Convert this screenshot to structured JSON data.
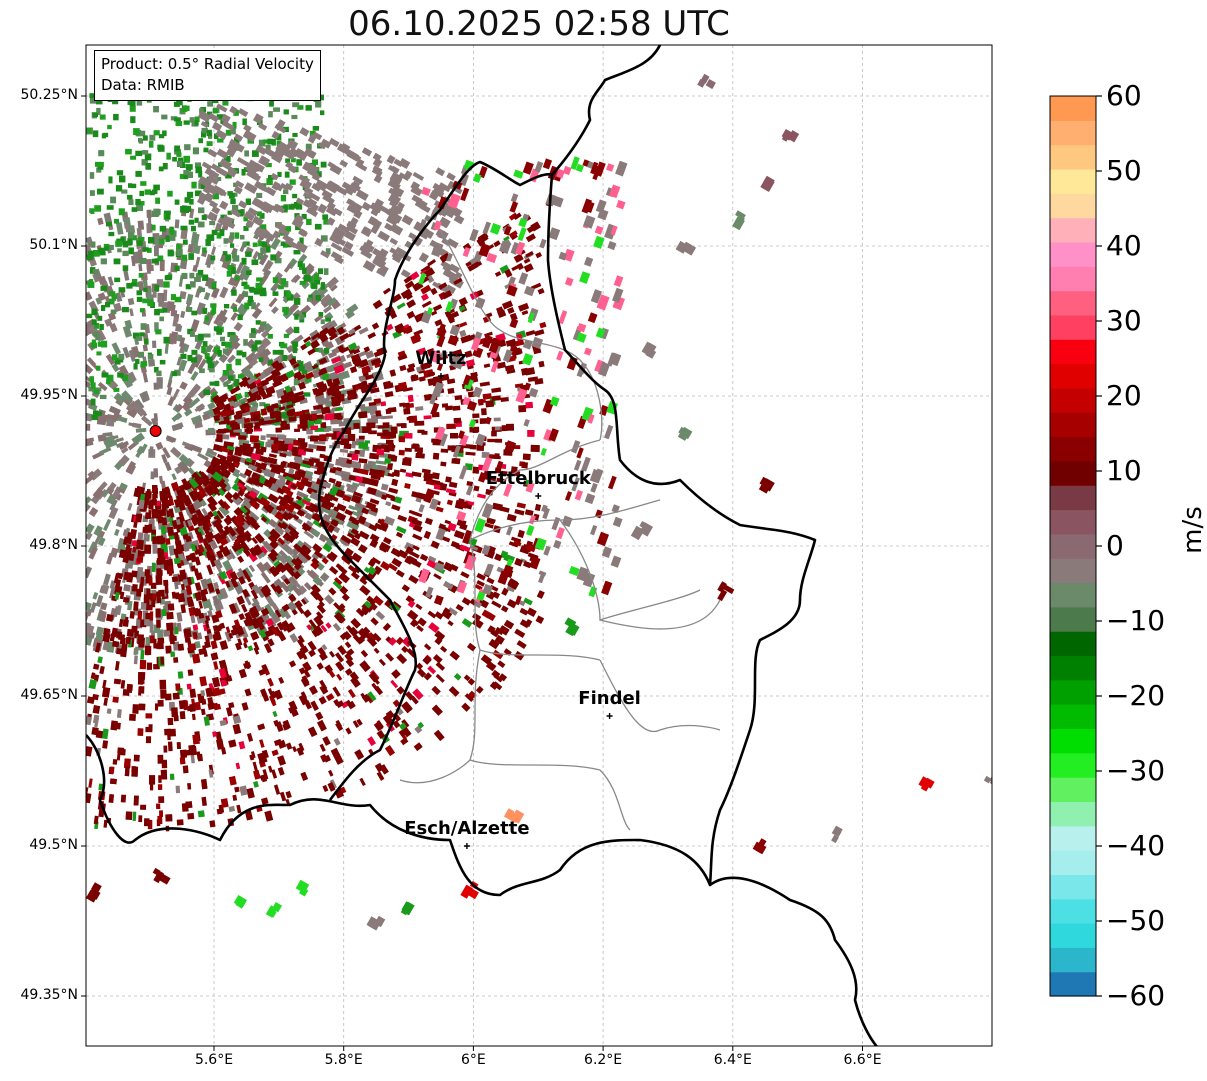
{
  "title": "06.10.2025 02:58 UTC",
  "info": {
    "product": "Product: 0.5° Radial Velocity",
    "data_source": "Data: RMIB"
  },
  "axes": {
    "lat_ticks": [
      "50.25°N",
      "50.1°N",
      "49.95°N",
      "49.8°N",
      "49.65°N",
      "49.5°N",
      "49.35°N"
    ],
    "lon_ticks": [
      "5.6°E",
      "5.8°E",
      "6°E",
      "6.2°E",
      "6.4°E",
      "6.6°E"
    ]
  },
  "cities": [
    {
      "name": "Wiltz",
      "lon": 5.95,
      "lat": 49.97
    },
    {
      "name": "Ettelbruck",
      "lon": 6.1,
      "lat": 49.85
    },
    {
      "name": "Findel",
      "lon": 6.21,
      "lat": 49.63
    },
    {
      "name": "Esch/Alzette",
      "lon": 5.99,
      "lat": 49.5
    }
  ],
  "radar_site": {
    "lon": 5.51,
    "lat": 49.915,
    "color": "#ee0000"
  },
  "colorbar": {
    "unit": "m/s",
    "min": -60,
    "max": 60,
    "tick_labels": [
      "60",
      "50",
      "40",
      "30",
      "20",
      "10",
      "0",
      "−10",
      "−20",
      "−30",
      "−40",
      "−50",
      "−60"
    ],
    "colors": [
      "#1f78b4",
      "#2bb6cc",
      "#2ed8dc",
      "#4ce0e4",
      "#7ae8ea",
      "#a6eeee",
      "#b8f0ee",
      "#90f0b0",
      "#60f060",
      "#22ee22",
      "#00dd00",
      "#00bb00",
      "#00a000",
      "#008000",
      "#006600",
      "#4d7a4d",
      "#6a8a6a",
      "#8a7a7a",
      "#8a6a70",
      "#8a5560",
      "#7a3a45",
      "#700000",
      "#8a0000",
      "#a60000",
      "#c40000",
      "#e00000",
      "#f80010",
      "#ff4060",
      "#ff6080",
      "#ff80b0",
      "#ff90c8",
      "#ffb0b8",
      "#ffd8a0",
      "#ffe898",
      "#ffc880",
      "#ffb070",
      "#ff9850"
    ]
  },
  "velocity_palette": {
    "inbound": "#1a8a1a",
    "outbound": "#7a0000",
    "near_zero": "#8a7a7a"
  }
}
